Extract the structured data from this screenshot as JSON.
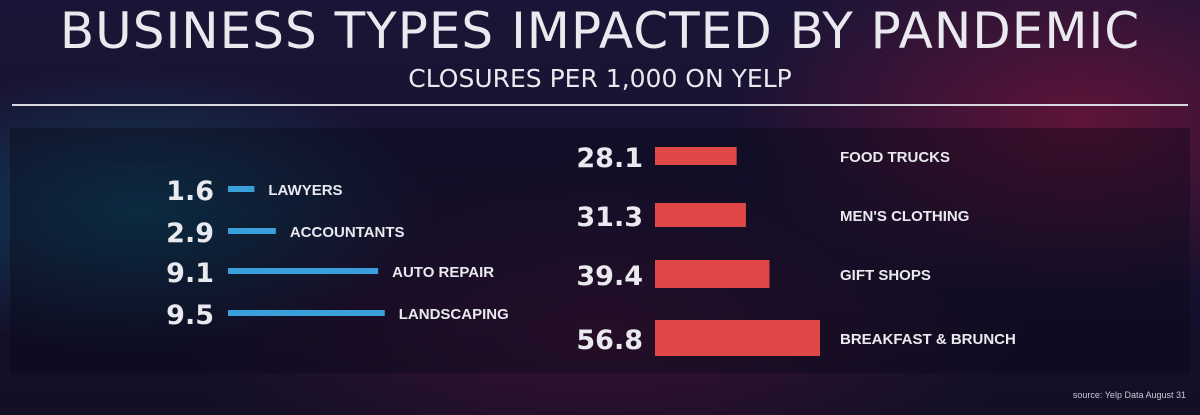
{
  "header": {
    "title": "BUSINESS TYPES IMPACTED BY PANDEMIC",
    "subtitle": "CLOSURES PER 1,000 ON YELP"
  },
  "footer": {
    "source": "source: Yelp Data August 31"
  },
  "colors": {
    "left_bars": "#3aa0dc",
    "right_bars": "#e04848",
    "text": "#e9e9ef"
  },
  "chart_data": [
    {
      "type": "bar",
      "orientation": "horizontal",
      "categories": [
        "LAWYERS",
        "ACCOUNTANTS",
        "AUTO REPAIR",
        "LANDSCAPING"
      ],
      "values": [
        1.6,
        2.9,
        9.1,
        9.5
      ],
      "value_labels": [
        "1.6",
        "2.9",
        "9.1",
        "9.5"
      ],
      "color": "#3aa0dc"
    },
    {
      "type": "bar",
      "orientation": "horizontal",
      "categories": [
        "FOOD TRUCKS",
        "MEN'S CLOTHING",
        "GIFT SHOPS",
        "BREAKFAST & BRUNCH"
      ],
      "values": [
        28.1,
        31.3,
        39.4,
        56.8
      ],
      "value_labels": [
        "28.1",
        "31.3",
        "39.4",
        "56.8"
      ],
      "color": "#e04848"
    }
  ]
}
